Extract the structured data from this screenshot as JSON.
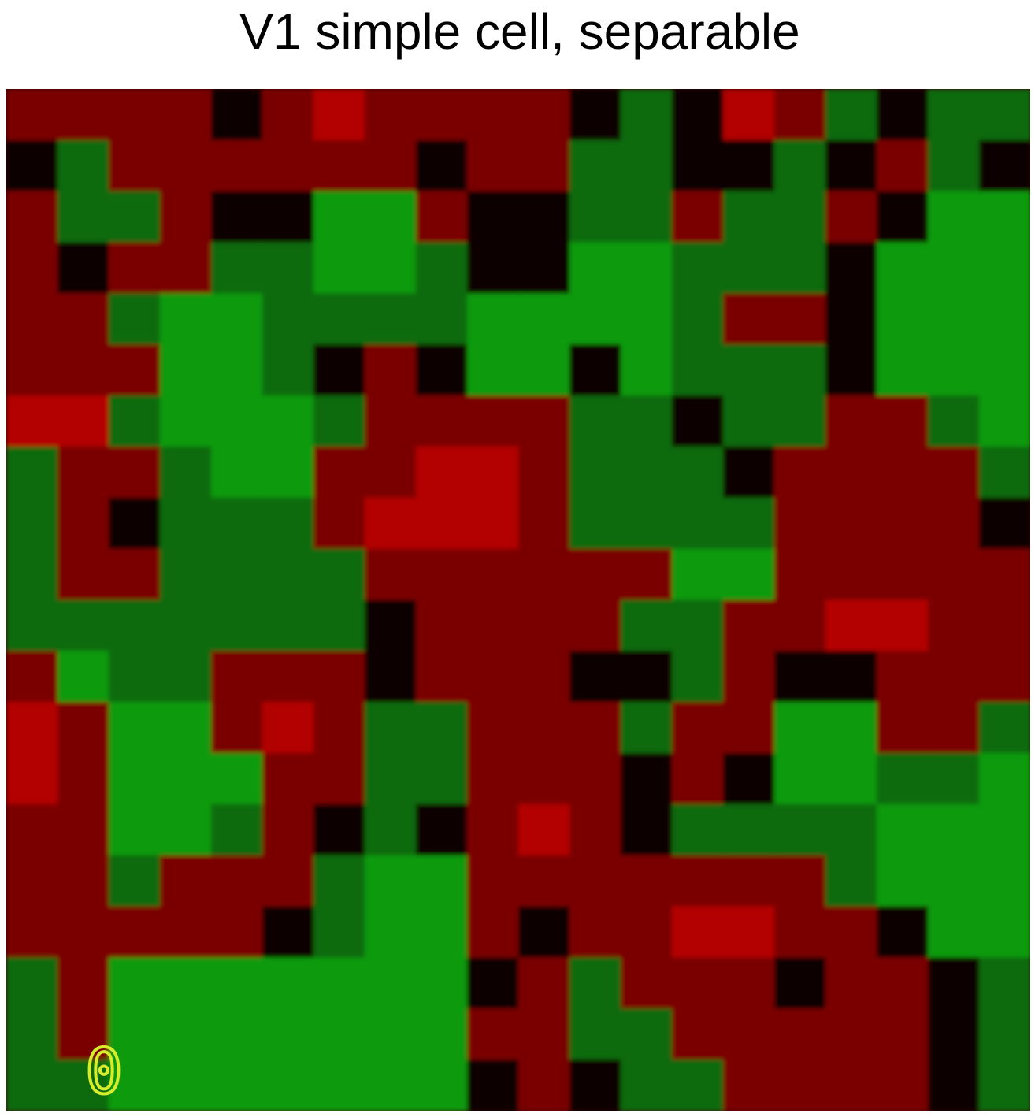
{
  "title": "V1 simple cell, separable",
  "frame_label": "0"
}
